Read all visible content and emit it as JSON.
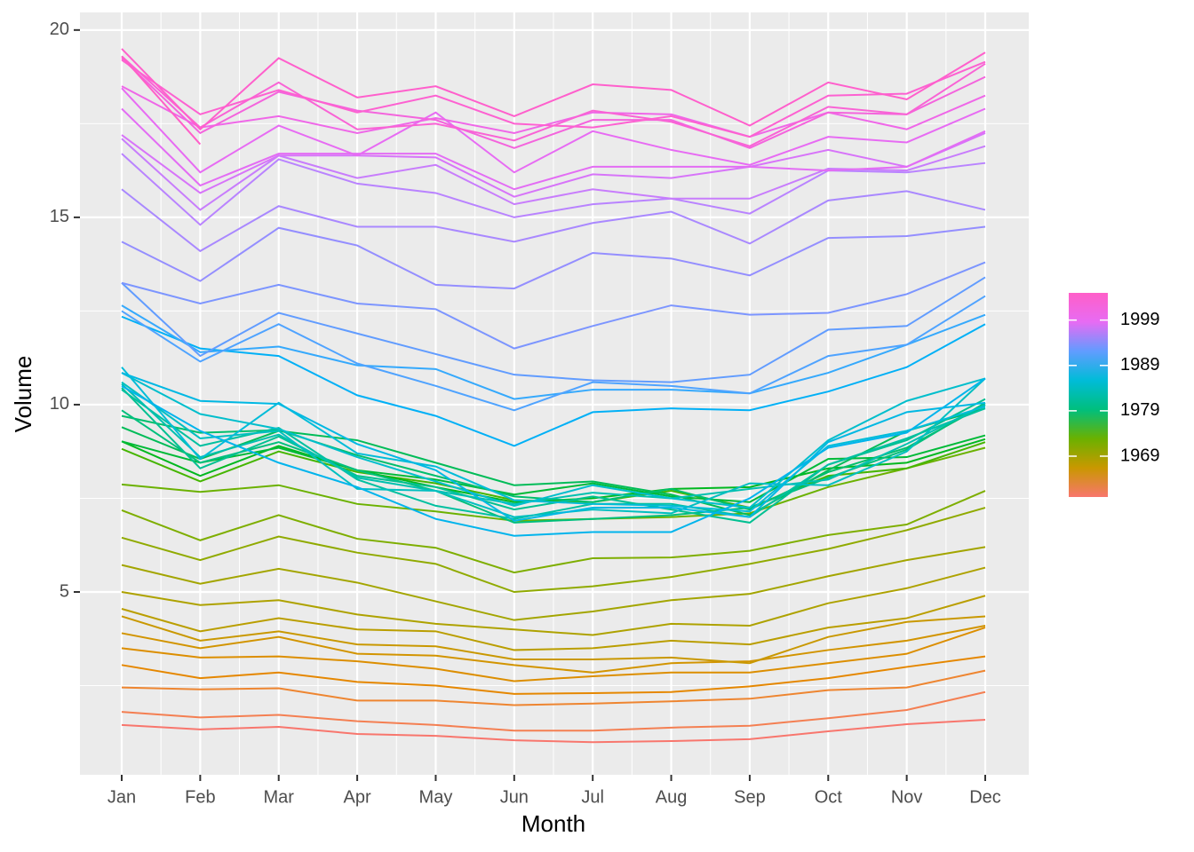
{
  "chart_data": {
    "type": "line",
    "x_label": "Month",
    "y_label": "Volume",
    "categories": [
      "Jan",
      "Feb",
      "Mar",
      "Apr",
      "May",
      "Jun",
      "Jul",
      "Aug",
      "Sep",
      "Oct",
      "Nov",
      "Dec"
    ],
    "ylim": [
      0.12,
      20.47
    ],
    "yticks": [
      5,
      10,
      15,
      20
    ],
    "grid": true,
    "colorbar": {
      "lim": [
        1960,
        2005
      ],
      "ticks": [
        1969,
        1979,
        1989,
        1999
      ],
      "colors": [
        "#F8766D",
        "#C99800",
        "#6BB100",
        "#00BF7D",
        "#00BCD8",
        "#619CFF",
        "#E76BF3",
        "#FF5FC8"
      ]
    },
    "series": [
      {
        "color": "#F8766D",
        "values": [
          1.45,
          1.33,
          1.4,
          1.21,
          1.16,
          1.04,
          0.99,
          1.02,
          1.07,
          1.28,
          1.47,
          1.59
        ]
      },
      {
        "color": "#F47F52",
        "values": [
          1.8,
          1.65,
          1.72,
          1.55,
          1.45,
          1.3,
          1.3,
          1.38,
          1.43,
          1.63,
          1.85,
          2.33
        ]
      },
      {
        "color": "#EE8530",
        "values": [
          2.45,
          2.4,
          2.43,
          2.1,
          2.1,
          1.98,
          2.02,
          2.08,
          2.15,
          2.38,
          2.45,
          2.9
        ]
      },
      {
        "color": "#E58700",
        "values": [
          3.05,
          2.7,
          2.85,
          2.6,
          2.5,
          2.28,
          2.3,
          2.33,
          2.48,
          2.7,
          3.0,
          3.28
        ]
      },
      {
        "color": "#DC8E00",
        "values": [
          3.5,
          3.25,
          3.28,
          3.15,
          2.95,
          2.62,
          2.75,
          2.85,
          2.85,
          3.1,
          3.35,
          4.05
        ]
      },
      {
        "color": "#D29400",
        "values": [
          3.9,
          3.5,
          3.8,
          3.35,
          3.3,
          3.05,
          2.85,
          3.1,
          3.15,
          3.45,
          3.7,
          4.1
        ]
      },
      {
        "color": "#C99800",
        "values": [
          4.35,
          3.7,
          3.95,
          3.6,
          3.55,
          3.2,
          3.2,
          3.25,
          3.1,
          3.8,
          4.2,
          4.35
        ]
      },
      {
        "color": "#BA9E00",
        "values": [
          4.55,
          3.95,
          4.3,
          4.0,
          3.95,
          3.45,
          3.5,
          3.7,
          3.6,
          4.05,
          4.3,
          4.9
        ]
      },
      {
        "color": "#AEA200",
        "values": [
          5.0,
          4.65,
          4.78,
          4.4,
          4.15,
          4.0,
          3.85,
          4.15,
          4.1,
          4.7,
          5.1,
          5.65
        ]
      },
      {
        "color": "#A3A500",
        "values": [
          5.72,
          5.22,
          5.62,
          5.25,
          4.75,
          4.25,
          4.48,
          4.78,
          4.95,
          5.42,
          5.85,
          6.2
        ]
      },
      {
        "color": "#90AA00",
        "values": [
          6.45,
          5.85,
          6.48,
          6.05,
          5.75,
          5.0,
          5.15,
          5.4,
          5.75,
          6.15,
          6.65,
          7.25
        ]
      },
      {
        "color": "#7EAE00",
        "values": [
          7.18,
          6.38,
          7.05,
          6.42,
          6.18,
          5.52,
          5.9,
          5.92,
          6.1,
          6.52,
          6.8,
          7.7
        ]
      },
      {
        "color": "#6BB100",
        "values": [
          7.87,
          7.67,
          7.85,
          7.35,
          7.15,
          6.9,
          6.95,
          7.0,
          7.1,
          7.8,
          8.3,
          8.85
        ]
      },
      {
        "color": "#45B500",
        "values": [
          8.82,
          7.95,
          8.75,
          8.2,
          7.9,
          7.45,
          7.4,
          7.7,
          7.25,
          8.1,
          8.3,
          9.0
        ]
      },
      {
        "color": "#00B81F",
        "values": [
          9.02,
          8.1,
          8.9,
          8.25,
          7.8,
          7.4,
          7.5,
          7.75,
          7.8,
          8.3,
          8.45,
          9.08
        ]
      },
      {
        "color": "#00BA38",
        "values": [
          9.02,
          8.45,
          8.85,
          8.25,
          8.0,
          7.6,
          7.9,
          7.55,
          7.4,
          8.55,
          8.6,
          9.18
        ]
      },
      {
        "color": "#00BC58",
        "values": [
          9.4,
          8.55,
          9.3,
          9.05,
          8.45,
          7.85,
          7.95,
          7.6,
          7.05,
          8.25,
          9.3,
          9.9
        ]
      },
      {
        "color": "#00BE6C",
        "values": [
          9.7,
          9.25,
          9.32,
          8.65,
          8.1,
          7.55,
          7.4,
          7.75,
          7.2,
          8.2,
          8.85,
          10.0
        ]
      },
      {
        "color": "#00BF7D",
        "values": [
          9.85,
          8.45,
          9.0,
          8.25,
          7.7,
          6.85,
          6.95,
          7.05,
          7.25,
          8.05,
          8.8,
          10.05
        ]
      },
      {
        "color": "#00C091",
        "values": [
          10.45,
          8.3,
          9.15,
          8.1,
          7.8,
          7.2,
          7.55,
          7.2,
          6.85,
          8.4,
          9.05,
          10.15
        ]
      },
      {
        "color": "#00C0A0",
        "values": [
          10.4,
          8.9,
          9.38,
          8.0,
          7.3,
          6.95,
          7.35,
          7.35,
          7.0,
          8.4,
          9.1,
          9.9
        ]
      },
      {
        "color": "#00C0AF",
        "values": [
          10.55,
          8.6,
          9.2,
          8.05,
          7.7,
          7.35,
          7.65,
          7.5,
          7.75,
          8.0,
          8.95,
          10.0
        ]
      },
      {
        "color": "#00BFC0",
        "values": [
          10.6,
          9.1,
          9.3,
          7.75,
          7.7,
          7.0,
          7.2,
          7.1,
          7.9,
          7.85,
          8.75,
          10.7
        ]
      },
      {
        "color": "#00BECC",
        "values": [
          10.85,
          9.75,
          9.35,
          8.6,
          7.95,
          7.3,
          7.85,
          7.5,
          7.25,
          9.05,
          10.1,
          10.7
        ]
      },
      {
        "color": "#00BCD8",
        "values": [
          11.0,
          8.55,
          10.05,
          8.7,
          8.35,
          7.45,
          7.35,
          7.3,
          7.15,
          8.9,
          9.3,
          9.95
        ]
      },
      {
        "color": "#00B8E3",
        "values": [
          10.85,
          10.1,
          10.02,
          8.95,
          8.25,
          6.9,
          7.25,
          7.25,
          7.0,
          9.0,
          9.8,
          10.05
        ]
      },
      {
        "color": "#00B4EC",
        "values": [
          10.5,
          9.3,
          8.45,
          7.8,
          6.95,
          6.5,
          6.6,
          6.6,
          7.5,
          8.85,
          9.25,
          10.7
        ]
      },
      {
        "color": "#00B0F6",
        "values": [
          12.35,
          11.5,
          11.3,
          10.25,
          9.7,
          8.9,
          9.8,
          9.9,
          9.85,
          10.35,
          11.0,
          12.15
        ]
      },
      {
        "color": "#35A9FC",
        "values": [
          12.65,
          11.4,
          11.55,
          11.05,
          10.95,
          10.15,
          10.4,
          10.4,
          10.3,
          10.85,
          11.6,
          12.4
        ]
      },
      {
        "color": "#4FA3FF",
        "values": [
          12.5,
          11.15,
          12.15,
          11.1,
          10.5,
          9.85,
          10.6,
          10.5,
          10.3,
          11.3,
          11.6,
          12.9
        ]
      },
      {
        "color": "#619CFF",
        "values": [
          13.25,
          11.3,
          12.45,
          11.9,
          11.35,
          10.8,
          10.65,
          10.6,
          10.8,
          12.0,
          12.1,
          13.4
        ]
      },
      {
        "color": "#7C95FF",
        "values": [
          13.25,
          12.7,
          13.2,
          12.7,
          12.55,
          11.5,
          12.1,
          12.65,
          12.4,
          12.45,
          12.95,
          13.8
        ]
      },
      {
        "color": "#948EFF",
        "values": [
          14.35,
          13.3,
          14.72,
          14.25,
          13.2,
          13.1,
          14.05,
          13.9,
          13.45,
          14.45,
          14.5,
          14.75
        ]
      },
      {
        "color": "#A988FF",
        "values": [
          15.75,
          14.1,
          15.3,
          14.75,
          14.75,
          14.35,
          14.85,
          15.15,
          14.3,
          15.45,
          15.7,
          15.2
        ]
      },
      {
        "color": "#B983FF",
        "values": [
          16.7,
          14.8,
          16.55,
          15.9,
          15.65,
          15.0,
          15.35,
          15.5,
          15.1,
          16.25,
          16.2,
          16.45
        ]
      },
      {
        "color": "#C87DFC",
        "values": [
          17.1,
          15.2,
          16.65,
          16.05,
          16.4,
          15.35,
          15.75,
          15.5,
          15.5,
          16.3,
          16.25,
          16.9
        ]
      },
      {
        "color": "#D774F9",
        "values": [
          17.2,
          15.65,
          16.65,
          16.65,
          16.6,
          15.55,
          16.15,
          16.05,
          16.35,
          16.8,
          16.35,
          17.25
        ]
      },
      {
        "color": "#E36DF4",
        "values": [
          17.9,
          15.85,
          16.7,
          16.7,
          16.7,
          15.75,
          16.35,
          16.35,
          16.35,
          16.25,
          16.35,
          17.3
        ]
      },
      {
        "color": "#E76BF3",
        "values": [
          18.45,
          16.2,
          17.45,
          16.65,
          17.8,
          16.2,
          17.3,
          16.8,
          16.4,
          17.15,
          17.0,
          17.9
        ]
      },
      {
        "color": "#EF67E8",
        "values": [
          18.5,
          17.4,
          17.7,
          17.25,
          17.65,
          17.25,
          17.8,
          17.75,
          17.15,
          17.8,
          17.35,
          18.25
        ]
      },
      {
        "color": "#F464DD",
        "values": [
          19.25,
          17.25,
          18.35,
          17.85,
          17.6,
          16.85,
          17.6,
          17.6,
          16.85,
          17.8,
          17.75,
          18.75
        ]
      },
      {
        "color": "#F963D5",
        "values": [
          19.3,
          17.4,
          18.6,
          17.35,
          17.5,
          17.05,
          17.85,
          17.55,
          16.9,
          17.95,
          17.75,
          19.1
        ]
      },
      {
        "color": "#FD61D1",
        "values": [
          19.2,
          17.75,
          18.4,
          17.8,
          18.25,
          17.5,
          17.4,
          17.7,
          17.15,
          18.25,
          18.3,
          19.15
        ]
      },
      {
        "color": "#FF5FCC",
        "values": [
          19.5,
          17.35,
          19.25,
          18.2,
          18.5,
          17.7,
          18.55,
          18.4,
          17.45,
          18.6,
          18.15,
          19.4
        ]
      },
      {
        "color": "#FF5FC8",
        "values": [
          19.3,
          16.95,
          null,
          null,
          null,
          null,
          null,
          null,
          null,
          null,
          null,
          null
        ]
      }
    ]
  }
}
